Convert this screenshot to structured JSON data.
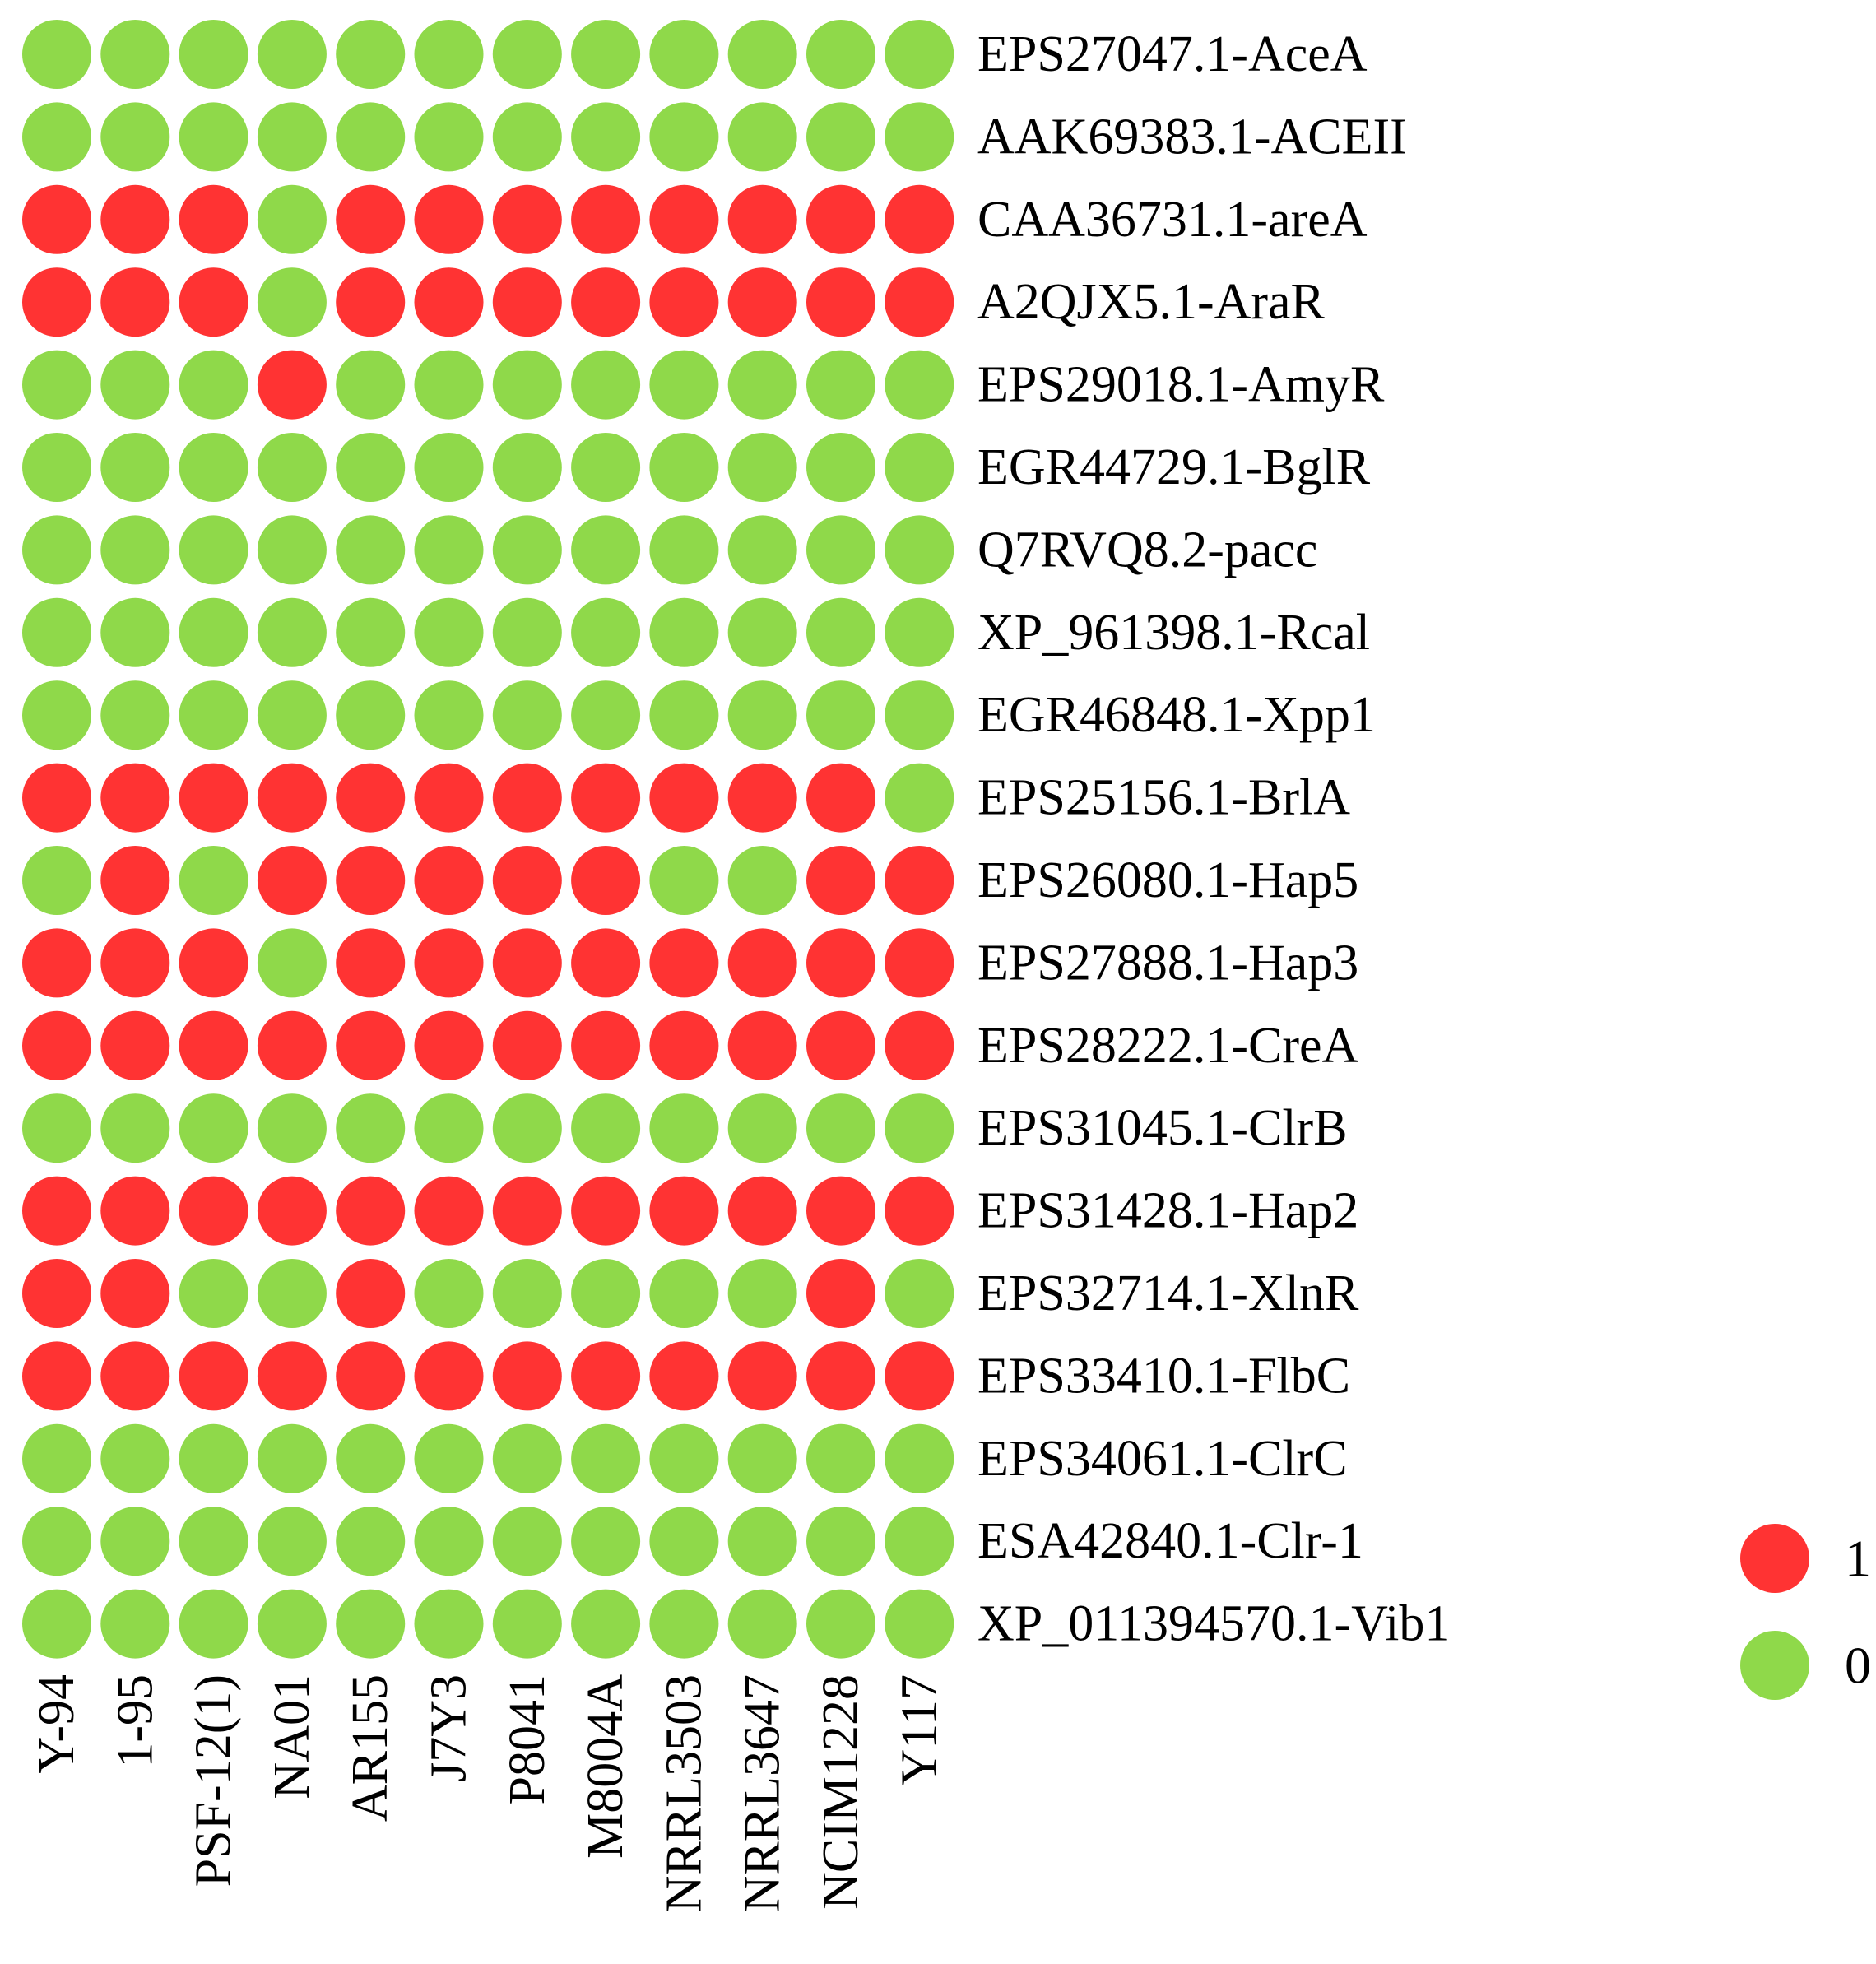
{
  "chart_data": {
    "type": "heatmap",
    "columns": [
      "Y-94",
      "1-95",
      "PSF-12(1)",
      "NA01",
      "AR155",
      "J7Y3",
      "P8041",
      "M8004A",
      "NRRL3503",
      "NRRL3647",
      "NCIM1228",
      "Y117"
    ],
    "rows": [
      "EPS27047.1-AceA",
      "AAK69383.1-ACEII",
      "CAA36731.1-areA",
      "A2QJX5.1-AraR",
      "EPS29018.1-AmyR",
      "EGR44729.1-BglR",
      "Q7RVQ8.2-pacc",
      "XP_961398.1-Rcal",
      "EGR46848.1-Xpp1",
      "EPS25156.1-BrlA",
      "EPS26080.1-Hap5",
      "EPS27888.1-Hap3",
      "EPS28222.1-CreA",
      "EPS31045.1-ClrB",
      "EPS31428.1-Hap2",
      "EPS32714.1-XlnR",
      "EPS33410.1-FlbC",
      "EPS34061.1-ClrC",
      "ESA42840.1-Clr-1",
      "XP_011394570.1-Vib1"
    ],
    "values": [
      [
        0,
        0,
        0,
        0,
        0,
        0,
        0,
        0,
        0,
        0,
        0,
        0
      ],
      [
        0,
        0,
        0,
        0,
        0,
        0,
        0,
        0,
        0,
        0,
        0,
        0
      ],
      [
        1,
        1,
        1,
        0,
        1,
        1,
        1,
        1,
        1,
        1,
        1,
        1
      ],
      [
        1,
        1,
        1,
        0,
        1,
        1,
        1,
        1,
        1,
        1,
        1,
        1
      ],
      [
        0,
        0,
        0,
        1,
        0,
        0,
        0,
        0,
        0,
        0,
        0,
        0
      ],
      [
        0,
        0,
        0,
        0,
        0,
        0,
        0,
        0,
        0,
        0,
        0,
        0
      ],
      [
        0,
        0,
        0,
        0,
        0,
        0,
        0,
        0,
        0,
        0,
        0,
        0
      ],
      [
        0,
        0,
        0,
        0,
        0,
        0,
        0,
        0,
        0,
        0,
        0,
        0
      ],
      [
        0,
        0,
        0,
        0,
        0,
        0,
        0,
        0,
        0,
        0,
        0,
        0
      ],
      [
        1,
        1,
        1,
        1,
        1,
        1,
        1,
        1,
        1,
        1,
        1,
        0
      ],
      [
        0,
        1,
        0,
        1,
        1,
        1,
        1,
        1,
        0,
        0,
        1,
        1
      ],
      [
        1,
        1,
        1,
        0,
        1,
        1,
        1,
        1,
        1,
        1,
        1,
        1
      ],
      [
        1,
        1,
        1,
        1,
        1,
        1,
        1,
        1,
        1,
        1,
        1,
        1
      ],
      [
        0,
        0,
        0,
        0,
        0,
        0,
        0,
        0,
        0,
        0,
        0,
        0
      ],
      [
        1,
        1,
        1,
        1,
        1,
        1,
        1,
        1,
        1,
        1,
        1,
        1
      ],
      [
        1,
        1,
        0,
        0,
        1,
        0,
        0,
        0,
        0,
        0,
        1,
        0
      ],
      [
        1,
        1,
        1,
        1,
        1,
        1,
        1,
        1,
        1,
        1,
        1,
        1
      ],
      [
        0,
        0,
        0,
        0,
        0,
        0,
        0,
        0,
        0,
        0,
        0,
        0
      ],
      [
        0,
        0,
        0,
        0,
        0,
        0,
        0,
        0,
        0,
        0,
        0,
        0
      ],
      [
        0,
        0,
        0,
        0,
        0,
        0,
        0,
        0,
        0,
        0,
        0,
        0
      ]
    ],
    "colors": {
      "1": "#ff3333",
      "0": "#8fd94a"
    },
    "legend": {
      "placement": "right",
      "items": [
        {
          "label": "1",
          "value": 1
        },
        {
          "label": "0",
          "value": 0
        }
      ]
    },
    "title": "",
    "xlabel": "",
    "ylabel": ""
  }
}
